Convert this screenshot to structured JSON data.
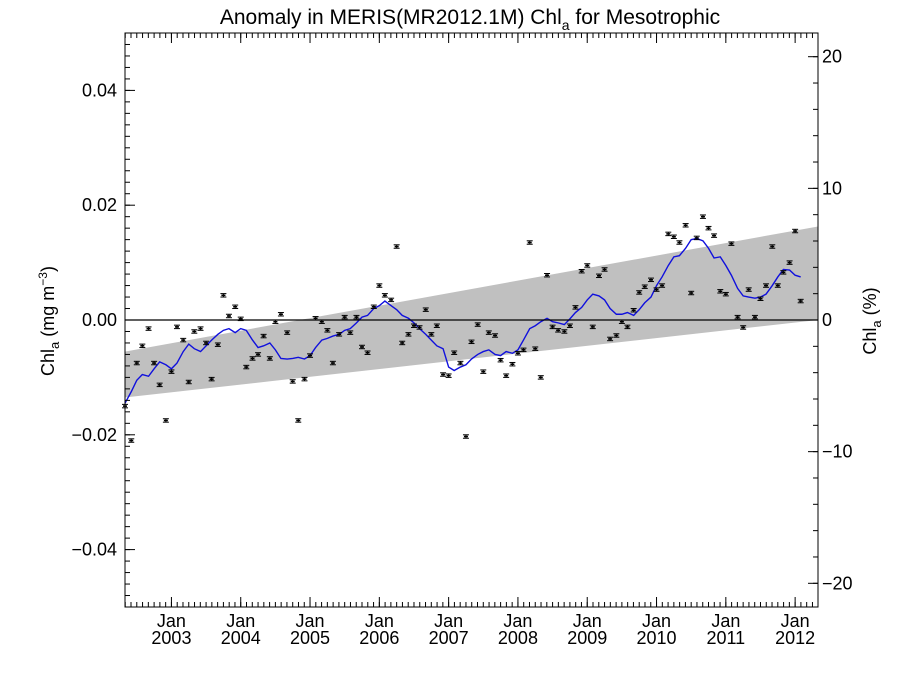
{
  "chart_data": {
    "type": "scatter",
    "title": {
      "main": "Anomaly in MERIS(MR2012.1M) Chl",
      "sub": "a",
      "tail": " for Mesotrophic"
    },
    "ylabel_left": {
      "pre": "Chl",
      "sub": "a",
      "mid": " (mg m",
      "sup": "−3",
      "post": ")"
    },
    "ylabel_right": {
      "pre": "Chl",
      "sub": "a",
      "post": " (%)"
    },
    "x_tick_month": "Jan",
    "x_ticks": [
      2003,
      2004,
      2005,
      2006,
      2007,
      2008,
      2009,
      2010,
      2011,
      2012
    ],
    "xlim": [
      2002.33,
      2012.33
    ],
    "ylim": [
      -0.05,
      0.05
    ],
    "y_ticks": [
      -0.04,
      -0.02,
      0.0,
      0.02,
      0.04
    ],
    "y_tick_labels": [
      "−0.04",
      "−0.02",
      "0.00",
      "0.02",
      "0.04"
    ],
    "y2lim": [
      -21.8,
      21.8
    ],
    "y2_ticks": [
      -20,
      -10,
      0,
      10,
      20
    ],
    "y2_tick_labels": [
      "−20",
      "−10",
      "0",
      "10",
      "20"
    ],
    "trend_band": {
      "lower": [
        [
          2002.33,
          -0.0135
        ],
        [
          2012.33,
          0.0
        ]
      ],
      "upper": [
        [
          2002.33,
          -0.0055
        ],
        [
          2012.33,
          0.0163
        ]
      ],
      "color": "#c0c0c0"
    },
    "zero_line": 0,
    "points": [
      [
        2002.33,
        -0.015
      ],
      [
        2002.42,
        -0.021
      ],
      [
        2002.5,
        -0.0075
      ],
      [
        2002.58,
        -0.0045
      ],
      [
        2002.67,
        -0.0015
      ],
      [
        2002.75,
        -0.0075
      ],
      [
        2002.83,
        -0.0113
      ],
      [
        2002.92,
        -0.0175
      ],
      [
        2003.0,
        -0.009
      ],
      [
        2003.08,
        -0.0012
      ],
      [
        2003.17,
        -0.0035
      ],
      [
        2003.25,
        -0.0108
      ],
      [
        2003.33,
        -0.002
      ],
      [
        2003.42,
        -0.0015
      ],
      [
        2003.5,
        -0.004
      ],
      [
        2003.58,
        -0.0103
      ],
      [
        2003.67,
        -0.0043
      ],
      [
        2003.75,
        0.0043
      ],
      [
        2003.83,
        0.0007
      ],
      [
        2003.92,
        0.0023
      ],
      [
        2004.0,
        0.0002
      ],
      [
        2004.08,
        -0.0082
      ],
      [
        2004.17,
        -0.0067
      ],
      [
        2004.25,
        -0.006
      ],
      [
        2004.33,
        -0.0028
      ],
      [
        2004.42,
        -0.0067
      ],
      [
        2004.5,
        -0.0003
      ],
      [
        2004.58,
        0.001
      ],
      [
        2004.67,
        -0.0022
      ],
      [
        2004.75,
        -0.0107
      ],
      [
        2004.83,
        -0.0175
      ],
      [
        2004.92,
        -0.0103
      ],
      [
        2005.0,
        -0.0062
      ],
      [
        2005.08,
        0.0003
      ],
      [
        2005.17,
        -0.0003
      ],
      [
        2005.25,
        -0.0018
      ],
      [
        2005.33,
        -0.0075
      ],
      [
        2005.42,
        -0.0025
      ],
      [
        2005.5,
        0.0005
      ],
      [
        2005.58,
        -0.0022
      ],
      [
        2005.67,
        0.0005
      ],
      [
        2005.75,
        -0.0047
      ],
      [
        2005.83,
        -0.0057
      ],
      [
        2005.92,
        0.0023
      ],
      [
        2006.0,
        0.006
      ],
      [
        2006.08,
        0.0043
      ],
      [
        2006.17,
        0.0035
      ],
      [
        2006.25,
        0.0128
      ],
      [
        2006.33,
        -0.004
      ],
      [
        2006.42,
        -0.0025
      ],
      [
        2006.5,
        -0.001
      ],
      [
        2006.58,
        -0.0013
      ],
      [
        2006.67,
        0.0018
      ],
      [
        2006.75,
        -0.0025
      ],
      [
        2006.83,
        -0.001
      ],
      [
        2006.92,
        -0.0095
      ],
      [
        2007.0,
        -0.0097
      ],
      [
        2007.08,
        -0.0057
      ],
      [
        2007.17,
        -0.0075
      ],
      [
        2007.25,
        -0.0203
      ],
      [
        2007.33,
        -0.0038
      ],
      [
        2007.42,
        -0.0008
      ],
      [
        2007.5,
        -0.009
      ],
      [
        2007.58,
        -0.0022
      ],
      [
        2007.67,
        -0.0027
      ],
      [
        2007.75,
        -0.007
      ],
      [
        2007.83,
        -0.0097
      ],
      [
        2007.92,
        -0.0077
      ],
      [
        2008.0,
        -0.0058
      ],
      [
        2008.08,
        -0.0052
      ],
      [
        2008.17,
        0.0135
      ],
      [
        2008.25,
        -0.005
      ],
      [
        2008.33,
        -0.01
      ],
      [
        2008.42,
        0.0078
      ],
      [
        2008.5,
        -0.0012
      ],
      [
        2008.58,
        -0.0018
      ],
      [
        2008.67,
        -0.002
      ],
      [
        2008.75,
        -0.001
      ],
      [
        2008.83,
        0.0022
      ],
      [
        2008.92,
        0.0085
      ],
      [
        2009.0,
        0.0095
      ],
      [
        2009.08,
        -0.0012
      ],
      [
        2009.17,
        0.0077
      ],
      [
        2009.25,
        0.0088
      ],
      [
        2009.33,
        -0.0033
      ],
      [
        2009.42,
        -0.0027
      ],
      [
        2009.5,
        -0.0003
      ],
      [
        2009.58,
        -0.0012
      ],
      [
        2009.67,
        0.0017
      ],
      [
        2009.75,
        0.0048
      ],
      [
        2009.83,
        0.0058
      ],
      [
        2009.92,
        0.007
      ],
      [
        2010.0,
        0.0053
      ],
      [
        2010.08,
        0.006
      ],
      [
        2010.17,
        0.015
      ],
      [
        2010.25,
        0.0145
      ],
      [
        2010.33,
        0.0135
      ],
      [
        2010.42,
        0.0165
      ],
      [
        2010.5,
        0.0047
      ],
      [
        2010.58,
        0.0143
      ],
      [
        2010.67,
        0.018
      ],
      [
        2010.75,
        0.016
      ],
      [
        2010.83,
        0.0147
      ],
      [
        2010.92,
        0.005
      ],
      [
        2011.0,
        0.0045
      ],
      [
        2011.08,
        0.0133
      ],
      [
        2011.17,
        0.0005
      ],
      [
        2011.25,
        -0.0013
      ],
      [
        2011.33,
        0.0053
      ],
      [
        2011.42,
        0.0005
      ],
      [
        2011.5,
        0.0037
      ],
      [
        2011.58,
        0.006
      ],
      [
        2011.67,
        0.0128
      ],
      [
        2011.75,
        0.006
      ],
      [
        2011.83,
        0.0083
      ],
      [
        2011.92,
        0.01
      ],
      [
        2012.0,
        0.0155
      ],
      [
        2012.08,
        0.0033
      ]
    ],
    "smoothed_line": {
      "color": "#1010dd",
      "points": [
        [
          2002.33,
          -0.0145
        ],
        [
          2002.42,
          -0.0125
        ],
        [
          2002.5,
          -0.0105
        ],
        [
          2002.58,
          -0.0095
        ],
        [
          2002.67,
          -0.0098
        ],
        [
          2002.75,
          -0.0085
        ],
        [
          2002.83,
          -0.0073
        ],
        [
          2002.92,
          -0.0078
        ],
        [
          2003.0,
          -0.0085
        ],
        [
          2003.08,
          -0.0075
        ],
        [
          2003.17,
          -0.0055
        ],
        [
          2003.25,
          -0.0042
        ],
        [
          2003.33,
          -0.005
        ],
        [
          2003.42,
          -0.0055
        ],
        [
          2003.5,
          -0.0045
        ],
        [
          2003.58,
          -0.0035
        ],
        [
          2003.67,
          -0.0025
        ],
        [
          2003.75,
          -0.0018
        ],
        [
          2003.83,
          -0.0015
        ],
        [
          2003.92,
          -0.0022
        ],
        [
          2004.0,
          -0.0015
        ],
        [
          2004.08,
          -0.0018
        ],
        [
          2004.17,
          -0.0035
        ],
        [
          2004.25,
          -0.0048
        ],
        [
          2004.33,
          -0.0045
        ],
        [
          2004.42,
          -0.004
        ],
        [
          2004.5,
          -0.0052
        ],
        [
          2004.58,
          -0.0067
        ],
        [
          2004.67,
          -0.0068
        ],
        [
          2004.75,
          -0.0067
        ],
        [
          2004.83,
          -0.0065
        ],
        [
          2004.92,
          -0.0068
        ],
        [
          2005.0,
          -0.0062
        ],
        [
          2005.08,
          -0.0048
        ],
        [
          2005.17,
          -0.0035
        ],
        [
          2005.25,
          -0.0032
        ],
        [
          2005.33,
          -0.0028
        ],
        [
          2005.42,
          -0.0025
        ],
        [
          2005.5,
          -0.0018
        ],
        [
          2005.58,
          -0.0015
        ],
        [
          2005.67,
          -0.0005
        ],
        [
          2005.75,
          0.0005
        ],
        [
          2005.83,
          0.0008
        ],
        [
          2005.92,
          0.002
        ],
        [
          2006.0,
          0.0025
        ],
        [
          2006.08,
          0.0033
        ],
        [
          2006.17,
          0.0025
        ],
        [
          2006.25,
          0.0018
        ],
        [
          2006.33,
          0.0008
        ],
        [
          2006.42,
          0.0003
        ],
        [
          2006.5,
          -0.0005
        ],
        [
          2006.58,
          -0.0015
        ],
        [
          2006.67,
          -0.0025
        ],
        [
          2006.75,
          -0.0035
        ],
        [
          2006.83,
          -0.0045
        ],
        [
          2006.92,
          -0.005
        ],
        [
          2007.0,
          -0.0082
        ],
        [
          2007.08,
          -0.0088
        ],
        [
          2007.17,
          -0.0082
        ],
        [
          2007.25,
          -0.0078
        ],
        [
          2007.33,
          -0.0068
        ],
        [
          2007.42,
          -0.006
        ],
        [
          2007.5,
          -0.0055
        ],
        [
          2007.58,
          -0.0052
        ],
        [
          2007.67,
          -0.006
        ],
        [
          2007.75,
          -0.0062
        ],
        [
          2007.83,
          -0.0055
        ],
        [
          2007.92,
          -0.0058
        ],
        [
          2008.0,
          -0.0052
        ],
        [
          2008.08,
          -0.0035
        ],
        [
          2008.17,
          -0.0015
        ],
        [
          2008.25,
          -0.001
        ],
        [
          2008.33,
          -0.0003
        ],
        [
          2008.42,
          0.0003
        ],
        [
          2008.5,
          -0.0003
        ],
        [
          2008.58,
          -0.0005
        ],
        [
          2008.67,
          -0.0008
        ],
        [
          2008.75,
          0.0002
        ],
        [
          2008.83,
          0.0013
        ],
        [
          2008.92,
          0.0022
        ],
        [
          2009.0,
          0.0035
        ],
        [
          2009.08,
          0.0045
        ],
        [
          2009.17,
          0.0042
        ],
        [
          2009.25,
          0.0035
        ],
        [
          2009.33,
          0.002
        ],
        [
          2009.42,
          0.001
        ],
        [
          2009.5,
          0.001
        ],
        [
          2009.58,
          0.0013
        ],
        [
          2009.67,
          0.0008
        ],
        [
          2009.75,
          0.0018
        ],
        [
          2009.83,
          0.003
        ],
        [
          2009.92,
          0.004
        ],
        [
          2010.0,
          0.006
        ],
        [
          2010.08,
          0.0075
        ],
        [
          2010.17,
          0.0095
        ],
        [
          2010.25,
          0.011
        ],
        [
          2010.33,
          0.0112
        ],
        [
          2010.42,
          0.0125
        ],
        [
          2010.5,
          0.014
        ],
        [
          2010.58,
          0.0142
        ],
        [
          2010.67,
          0.0138
        ],
        [
          2010.75,
          0.0125
        ],
        [
          2010.83,
          0.0108
        ],
        [
          2010.92,
          0.011
        ],
        [
          2011.0,
          0.0095
        ],
        [
          2011.08,
          0.0078
        ],
        [
          2011.17,
          0.0055
        ],
        [
          2011.25,
          0.0042
        ],
        [
          2011.33,
          0.004
        ],
        [
          2011.42,
          0.0038
        ],
        [
          2011.5,
          0.004
        ],
        [
          2011.58,
          0.0045
        ],
        [
          2011.67,
          0.006
        ],
        [
          2011.75,
          0.0075
        ],
        [
          2011.83,
          0.0088
        ],
        [
          2011.92,
          0.0087
        ],
        [
          2012.0,
          0.0078
        ],
        [
          2012.08,
          0.0075
        ]
      ]
    },
    "error_bar_half_width": 0.0003,
    "grid": false
  }
}
